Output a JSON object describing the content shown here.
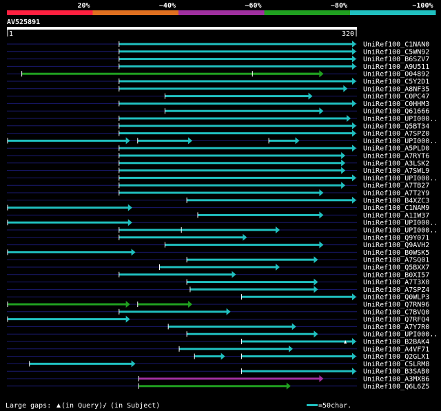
{
  "legend": {
    "bands": [
      {
        "label": "20%",
        "color": "#ff2040"
      },
      {
        "label": "~40%",
        "color": "#e07020"
      },
      {
        "label": "~60%",
        "color": "#a030a0"
      },
      {
        "label": "~80%",
        "color": "#20a020"
      },
      {
        "label": "~100%",
        "color": "#20c0c0"
      }
    ]
  },
  "query": {
    "id": "AV525891",
    "start": "1",
    "end": "320",
    "length": 320
  },
  "rows": [
    {
      "label": "UniRef100_C1NAN0",
      "segs": [
        [
          103,
          320,
          "c"
        ]
      ]
    },
    {
      "label": "UniRef100_C5WN92",
      "segs": [
        [
          103,
          320,
          "c"
        ]
      ]
    },
    {
      "label": "UniRef100_B6SZV7",
      "segs": [
        [
          103,
          320,
          "c"
        ]
      ]
    },
    {
      "label": "UniRef100_A9U511",
      "segs": [
        [
          103,
          320,
          "c"
        ]
      ]
    },
    {
      "label": "UniRef100_O04892",
      "segs": [
        [
          14,
          290,
          "g"
        ],
        [
          225,
          290,
          "g"
        ]
      ],
      "ticks": [
        14
      ]
    },
    {
      "label": "UniRef100_C5Y2D1",
      "segs": [
        [
          103,
          320,
          "c"
        ]
      ]
    },
    {
      "label": "UniRef100_A8NF35",
      "segs": [
        [
          103,
          312,
          "c"
        ]
      ]
    },
    {
      "label": "UniRef100_C0PC47",
      "segs": [
        [
          145,
          280,
          "c"
        ]
      ]
    },
    {
      "label": "UniRef100_C0HHM3",
      "segs": [
        [
          103,
          320,
          "c"
        ]
      ]
    },
    {
      "label": "UniRef100_Q61666",
      "segs": [
        [
          145,
          290,
          "c"
        ]
      ]
    },
    {
      "label": "UniRef100_UPI000..",
      "segs": [
        [
          103,
          315,
          "c"
        ]
      ]
    },
    {
      "label": "UniRef100_Q5BT34",
      "segs": [
        [
          103,
          320,
          "c"
        ]
      ]
    },
    {
      "label": "UniRef100_A7SPZ0",
      "segs": [
        [
          103,
          320,
          "c"
        ]
      ]
    },
    {
      "label": "UniRef100_UPI000..",
      "segs": [
        [
          1,
          113,
          "c"
        ],
        [
          120,
          170,
          "c"
        ],
        [
          240,
          268,
          "c"
        ]
      ]
    },
    {
      "label": "UniRef100_A5PLD0",
      "segs": [
        [
          103,
          320,
          "c"
        ]
      ]
    },
    {
      "label": "UniRef100_A7RYT6",
      "segs": [
        [
          103,
          310,
          "c"
        ]
      ]
    },
    {
      "label": "UniRef100_A3LSK2",
      "segs": [
        [
          103,
          310,
          "c"
        ]
      ]
    },
    {
      "label": "UniRef100_A7SWL9",
      "segs": [
        [
          103,
          310,
          "c"
        ]
      ]
    },
    {
      "label": "UniRef100_UPI000..",
      "segs": [
        [
          103,
          320,
          "c"
        ]
      ]
    },
    {
      "label": "UniRef100_A7TB27",
      "segs": [
        [
          103,
          310,
          "c"
        ]
      ]
    },
    {
      "label": "UniRef100_A7T2Y9",
      "segs": [
        [
          103,
          290,
          "c"
        ]
      ]
    },
    {
      "label": "UniRef100_B4XZC3",
      "segs": [
        [
          165,
          320,
          "c"
        ]
      ]
    },
    {
      "label": "UniRef100_C1NAM9",
      "segs": [
        [
          1,
          115,
          "c"
        ]
      ]
    },
    {
      "label": "UniRef100_A1IW37",
      "segs": [
        [
          175,
          290,
          "c"
        ]
      ]
    },
    {
      "label": "UniRef100_UPI000..",
      "segs": [
        [
          1,
          115,
          "c"
        ]
      ]
    },
    {
      "label": "UniRef100_UPI000..",
      "segs": [
        [
          103,
          250,
          "c"
        ],
        [
          160,
          250,
          "c"
        ]
      ]
    },
    {
      "label": "UniRef100_Q9Y071",
      "segs": [
        [
          103,
          220,
          "c"
        ]
      ]
    },
    {
      "label": "UniRef100_Q9AVH2",
      "segs": [
        [
          145,
          290,
          "c"
        ]
      ]
    },
    {
      "label": "UniRef100_B0WSK5",
      "segs": [
        [
          1,
          118,
          "c"
        ]
      ]
    },
    {
      "label": "UniRef100_A7SQ01",
      "segs": [
        [
          165,
          285,
          "c"
        ]
      ]
    },
    {
      "label": "UniRef100_Q5BXX7",
      "segs": [
        [
          140,
          250,
          "c"
        ]
      ]
    },
    {
      "label": "UniRef100_B0XI57",
      "segs": [
        [
          103,
          210,
          "c"
        ]
      ]
    },
    {
      "label": "UniRef100_A7T3X0",
      "segs": [
        [
          165,
          285,
          "c"
        ]
      ]
    },
    {
      "label": "UniRef100_A7SPZ4",
      "segs": [
        [
          168,
          285,
          "c"
        ]
      ]
    },
    {
      "label": "UniRef100_Q0WLP3",
      "segs": [
        [
          215,
          320,
          "c"
        ]
      ]
    },
    {
      "label": "UniRef100_Q7RN96",
      "segs": [
        [
          1,
          113,
          "g"
        ],
        [
          120,
          170,
          "g"
        ]
      ]
    },
    {
      "label": "UniRef100_C7BVQ0",
      "segs": [
        [
          103,
          205,
          "c"
        ]
      ]
    },
    {
      "label": "UniRef100_Q7RFQ4",
      "segs": [
        [
          1,
          113,
          "c"
        ]
      ]
    },
    {
      "label": "UniRef100_A7Y7R0",
      "segs": [
        [
          148,
          265,
          "c"
        ]
      ]
    },
    {
      "label": "UniRef100_UPI000..",
      "segs": [
        [
          165,
          285,
          "c"
        ]
      ]
    },
    {
      "label": "UniRef100_B2BAK4",
      "segs": [
        [
          215,
          320,
          "c"
        ]
      ],
      "gapmark": 310
    },
    {
      "label": "UniRef100_A4VF71",
      "segs": [
        [
          158,
          262,
          "c"
        ]
      ]
    },
    {
      "label": "UniRef100_Q2GLX1",
      "segs": [
        [
          172,
          200,
          "c"
        ],
        [
          215,
          320,
          "c"
        ]
      ]
    },
    {
      "label": "UniRef100_C5LRM8",
      "segs": [
        [
          21,
          118,
          "c"
        ]
      ]
    },
    {
      "label": "UniRef100_B3SAB0",
      "segs": [
        [
          215,
          320,
          "c"
        ]
      ]
    },
    {
      "label": "UniRef100_A3MXB6",
      "segs": [
        [
          121,
          290,
          "m"
        ]
      ]
    },
    {
      "label": "UniRef100_Q6L6Z5",
      "segs": [
        [
          121,
          260,
          "g"
        ]
      ]
    }
  ],
  "footer": {
    "large_gaps": "Large gaps:",
    "in_query": "(in Query)/",
    "in_subject": "- (in Subject)",
    "scale": "=50char."
  }
}
